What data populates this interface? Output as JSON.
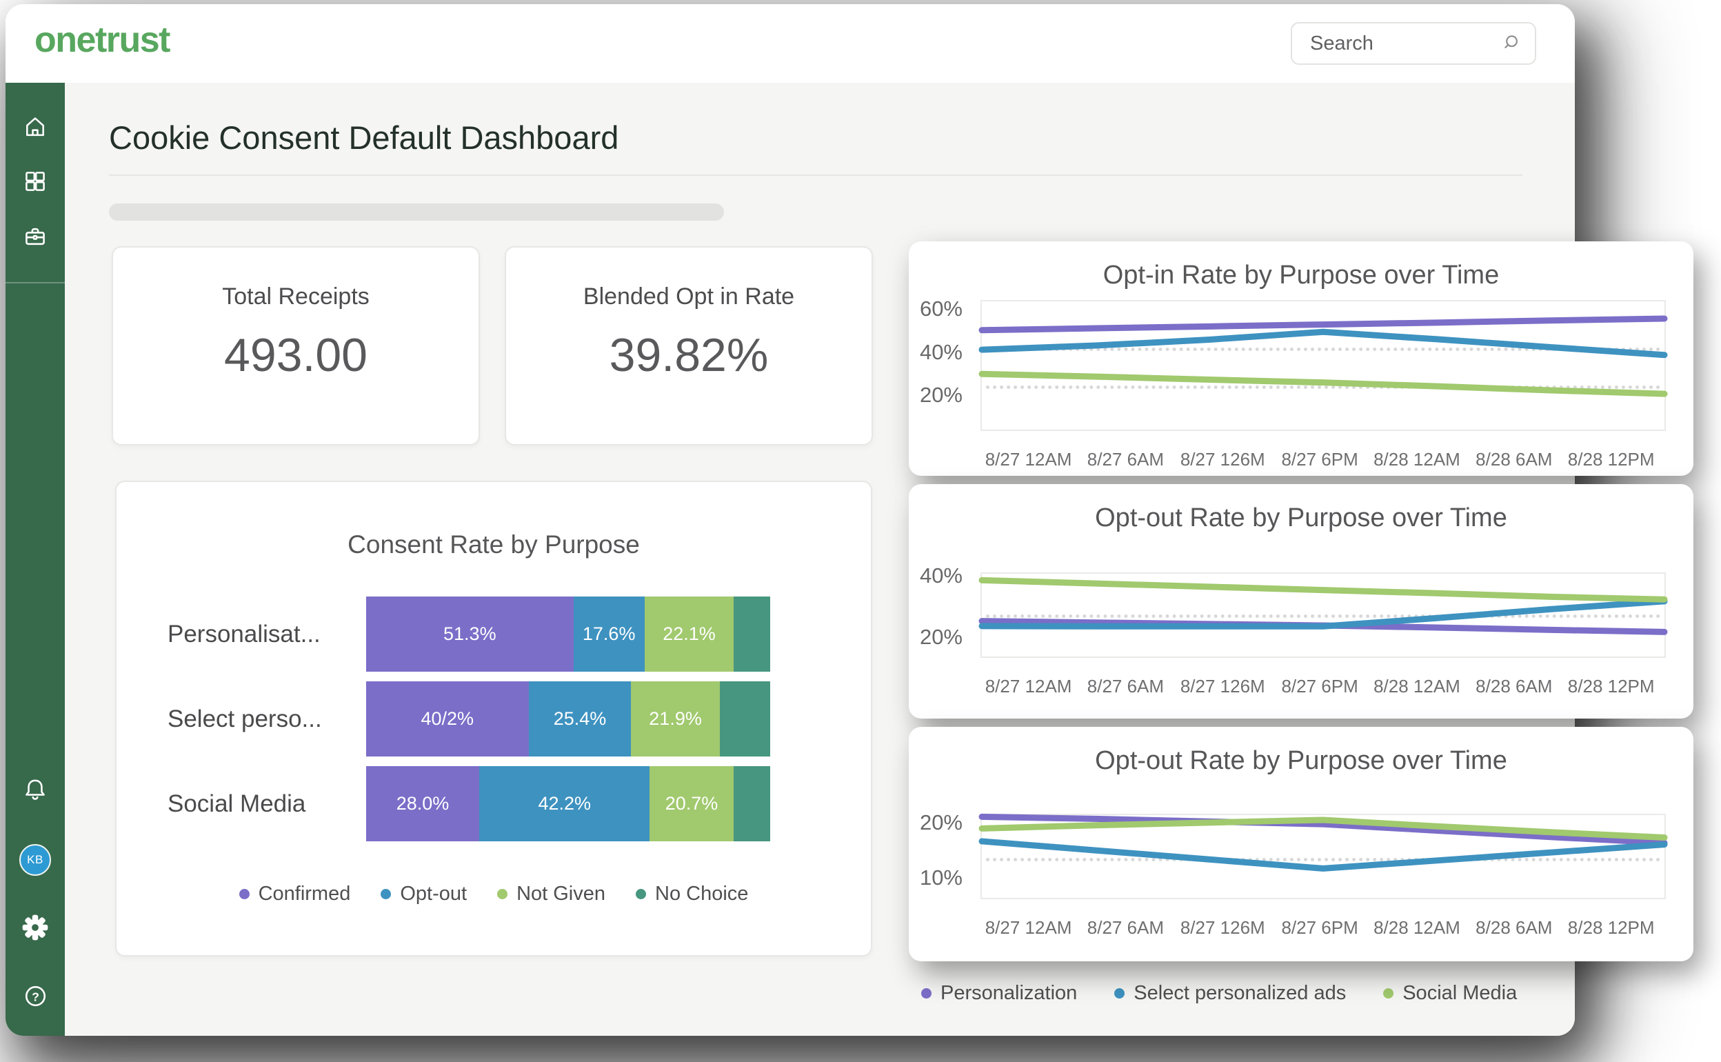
{
  "topbar": {
    "logo": "onetrust",
    "search": {
      "placeholder": "Search"
    }
  },
  "sidebar": {
    "avatar": "KB",
    "icons": [
      "home",
      "grid",
      "briefcase"
    ],
    "footer_icons": [
      "bell",
      "avatar",
      "gear",
      "help"
    ]
  },
  "page": {
    "title": "Cookie Consent Default Dashboard"
  },
  "stats": [
    {
      "label": "Total Receipts",
      "value": "493.00"
    },
    {
      "label": "Blended Opt in Rate",
      "value": "39.82%"
    }
  ],
  "colors": {
    "purple": "#7B6EC8",
    "blue": "#3E92C0",
    "green": "#A1C96E",
    "teal": "#47967F",
    "sidebar": "#37694B",
    "brand": "#58A75F"
  },
  "chart_data": [
    {
      "type": "bar",
      "title": "Consent Rate by Purpose",
      "orientation": "horizontal-stacked",
      "categories": [
        "Personalisat...",
        "Select perso...",
        "Social Media"
      ],
      "series": [
        {
          "name": "Confirmed",
          "color": "#7B6EC8",
          "values": [
            51.3,
            40.2,
            28.0
          ],
          "labels": [
            "51.3%",
            "40/2%",
            "28.0%"
          ]
        },
        {
          "name": "Opt-out",
          "color": "#3E92C0",
          "values": [
            17.6,
            25.4,
            42.2
          ],
          "labels": [
            "17.6%",
            "25.4%",
            "42.2%"
          ]
        },
        {
          "name": "Not Given",
          "color": "#A1C96E",
          "values": [
            22.1,
            21.9,
            20.7
          ],
          "labels": [
            "22.1%",
            "21.9%",
            "20.7%"
          ]
        },
        {
          "name": "No Choice",
          "color": "#47967F",
          "values": [
            9.0,
            12.5,
            9.1
          ],
          "labels": [
            "",
            "",
            ""
          ]
        }
      ],
      "legend": [
        "Confirmed",
        "Opt-out",
        "Not Given",
        "No Choice"
      ]
    },
    {
      "type": "line",
      "title": "Opt-in Rate by Purpose over Time",
      "x": [
        "8/27 12AM",
        "8/27 6AM",
        "8/27 126M",
        "8/27 6PM",
        "8/28 12AM",
        "8/28 6AM",
        "8/28 12PM"
      ],
      "ylim": [
        3,
        64
      ],
      "yticks": [
        {
          "label": "60%",
          "value": 60
        },
        {
          "label": "40%",
          "value": 40
        },
        {
          "label": "20%",
          "value": 20
        }
      ],
      "ref_lines": [
        41.5,
        24
      ],
      "grid": "dotted-reference-lines",
      "legend_position": "bottom-shared",
      "series": [
        {
          "name": "Social Media",
          "color": "#A1C96E",
          "values": [
            29.5,
            28.2,
            26.8,
            25.4,
            23.6,
            21.7,
            20.0
          ]
        },
        {
          "name": "Select personalized ads",
          "color": "#3E92C0",
          "values": [
            41.0,
            43.0,
            45.8,
            49.5,
            46.0,
            42.2,
            38.5
          ]
        },
        {
          "name": "Personalization",
          "color": "#7B6EC8",
          "values": [
            50.3,
            51.2,
            52.1,
            53.0,
            53.9,
            54.9,
            55.8
          ]
        }
      ]
    },
    {
      "type": "line",
      "title": "Opt-out Rate by Purpose over Time",
      "x": [
        "8/27 12AM",
        "8/27 6AM",
        "8/27 126M",
        "8/27 6PM",
        "8/28 12AM",
        "8/28 6AM",
        "8/28 12PM"
      ],
      "ylim": [
        13,
        41
      ],
      "yticks": [
        {
          "label": "40%",
          "value": 40
        },
        {
          "label": "20%",
          "value": 20
        }
      ],
      "ref_lines": [
        27
      ],
      "grid": "dotted-reference-lines",
      "legend_position": "bottom-shared",
      "series": [
        {
          "name": "Personalization",
          "color": "#7B6EC8",
          "values": [
            25.0,
            24.5,
            24.0,
            23.5,
            22.8,
            22.0,
            21.3
          ]
        },
        {
          "name": "Select personalized ads",
          "color": "#3E92C0",
          "values": [
            23.3,
            23.2,
            23.2,
            23.2,
            26.0,
            29.0,
            31.7
          ]
        },
        {
          "name": "Social Media",
          "color": "#A1C96E",
          "values": [
            38.8,
            37.7,
            36.6,
            35.5,
            34.4,
            33.2,
            32.3
          ]
        }
      ]
    },
    {
      "type": "line",
      "title": "Opt-out Rate by Purpose over Time",
      "x": [
        "8/27 12AM",
        "8/27 6AM",
        "8/27 126M",
        "8/27 6PM",
        "8/28 12AM",
        "8/28 6AM",
        "8/28 12PM"
      ],
      "ylim": [
        6,
        21.5
      ],
      "yticks": [
        {
          "label": "20%",
          "value": 20
        },
        {
          "label": "10%",
          "value": 10
        }
      ],
      "ref_lines": [
        13.4
      ],
      "grid": "dotted-reference-lines",
      "legend_position": "bottom-shared",
      "series": [
        {
          "name": "Personalization",
          "color": "#7B6EC8",
          "values": [
            21.2,
            20.8,
            20.3,
            19.8,
            18.6,
            17.4,
            16.3
          ]
        },
        {
          "name": "Social Media",
          "color": "#A1C96E",
          "values": [
            19.0,
            19.6,
            20.1,
            20.6,
            19.4,
            18.3,
            17.3
          ]
        },
        {
          "name": "Select personalized ads",
          "color": "#3E92C0",
          "values": [
            16.6,
            14.9,
            13.2,
            11.5,
            13.0,
            14.5,
            16.0
          ]
        }
      ]
    }
  ],
  "line_legend": [
    {
      "label": "Personalization",
      "color": "#7B6EC8"
    },
    {
      "label": "Select personalized ads",
      "color": "#3E92C0"
    },
    {
      "label": "Social Media",
      "color": "#A1C96E"
    }
  ]
}
